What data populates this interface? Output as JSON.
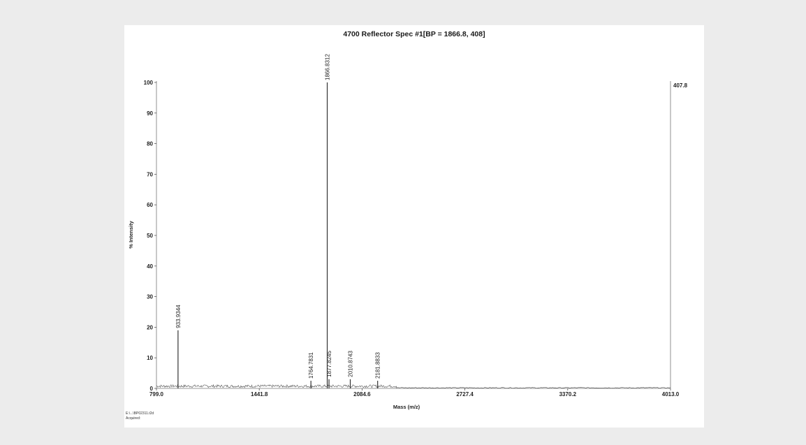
{
  "chart_data": {
    "type": "line",
    "title": "4700 Reflector Spec #1[BP = 1866.8, 408]",
    "xlabel": "Mass (m/z)",
    "ylabel": "% Intensity",
    "xlim": [
      799.0,
      4013.0
    ],
    "ylim": [
      0,
      100
    ],
    "x_ticks": [
      "799.0",
      "1441.8",
      "2084.6",
      "2727.4",
      "3370.2",
      "4013.0"
    ],
    "y_ticks": [
      "0",
      "10",
      "20",
      "30",
      "40",
      "50",
      "60",
      "70",
      "80",
      "90",
      "100"
    ],
    "max_intensity_label": "407.8",
    "grid": false,
    "peaks": [
      {
        "mz": 933.9344,
        "intensity": 19,
        "label": "933.9344"
      },
      {
        "mz": 1764.7831,
        "intensity": 2.5,
        "label": "1764.7831"
      },
      {
        "mz": 1866.8312,
        "intensity": 100,
        "label": "1866.8312"
      },
      {
        "mz": 1877.8245,
        "intensity": 3,
        "label": "1877.8245"
      },
      {
        "mz": 2010.8743,
        "intensity": 3,
        "label": "2010.8743"
      },
      {
        "mz": 2181.8833,
        "intensity": 2.5,
        "label": "2181.8833"
      }
    ]
  },
  "footer": {
    "file_line": "E:\\...\\BP02311.t2d",
    "acquired_line": "Acquired:"
  }
}
